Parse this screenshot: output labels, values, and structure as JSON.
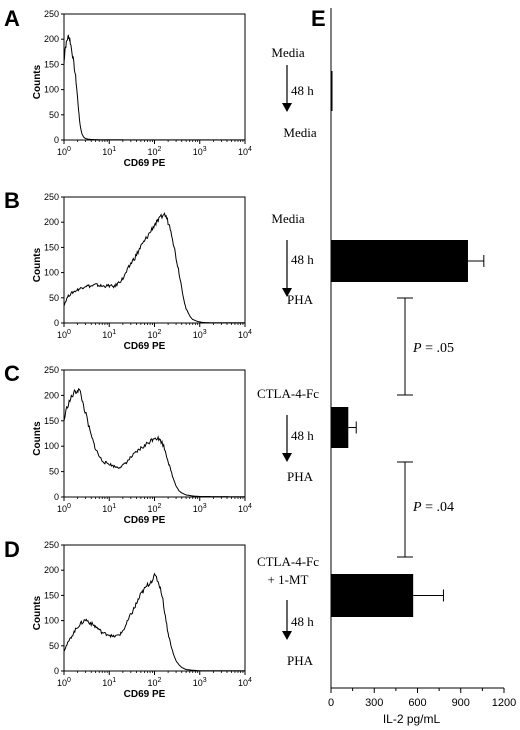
{
  "panels": [
    {
      "letter": "A",
      "xlabel": "CD69 PE",
      "ylabel": "Counts",
      "y_ticks": [
        "0",
        "50",
        "100",
        "150",
        "200",
        "250"
      ],
      "x_ticks": [
        "10",
        "10",
        "10",
        "10",
        "10"
      ],
      "x_tick_exps": [
        "0",
        "1",
        "2",
        "3",
        "4"
      ],
      "ylim": [
        0,
        250
      ],
      "curve": [
        [
          1.0,
          150
        ],
        [
          1.02,
          165
        ],
        [
          1.05,
          180
        ],
        [
          1.1,
          188
        ],
        [
          1.15,
          196
        ],
        [
          1.2,
          202
        ],
        [
          1.25,
          206
        ],
        [
          1.3,
          204
        ],
        [
          1.35,
          198
        ],
        [
          1.42,
          188
        ],
        [
          1.5,
          175
        ],
        [
          1.6,
          160
        ],
        [
          1.7,
          142
        ],
        [
          1.8,
          125
        ],
        [
          1.9,
          105
        ],
        [
          2.0,
          82
        ],
        [
          2.1,
          60
        ],
        [
          2.2,
          40
        ],
        [
          2.35,
          22
        ],
        [
          2.5,
          12
        ],
        [
          2.7,
          6
        ],
        [
          3.0,
          3
        ],
        [
          3.5,
          1.5
        ],
        [
          4.0,
          1
        ],
        [
          5,
          0.8
        ],
        [
          7,
          0.5
        ],
        [
          10,
          0.4
        ],
        [
          20,
          0.3
        ],
        [
          50,
          0.2
        ],
        [
          100,
          0.2
        ],
        [
          1000,
          0.1
        ],
        [
          10000,
          0.1
        ]
      ]
    },
    {
      "letter": "B",
      "xlabel": "CD69 PE",
      "ylabel": "Counts",
      "y_ticks": [
        "0",
        "50",
        "100",
        "150",
        "200",
        "250"
      ],
      "x_ticks": [
        "10",
        "10",
        "10",
        "10",
        "10"
      ],
      "x_tick_exps": [
        "0",
        "1",
        "2",
        "3",
        "4"
      ],
      "ylim": [
        0,
        250
      ],
      "curve": [
        [
          1.0,
          35
        ],
        [
          1.2,
          52
        ],
        [
          1.5,
          60
        ],
        [
          2,
          66
        ],
        [
          2.5,
          70
        ],
        [
          3,
          74
        ],
        [
          4,
          73
        ],
        [
          5,
          76
        ],
        [
          7,
          73
        ],
        [
          10,
          74
        ],
        [
          13,
          72
        ],
        [
          16,
          80
        ],
        [
          20,
          88
        ],
        [
          25,
          104
        ],
        [
          30,
          118
        ],
        [
          40,
          135
        ],
        [
          50,
          152
        ],
        [
          60,
          162
        ],
        [
          70,
          172
        ],
        [
          80,
          180
        ],
        [
          90,
          188
        ],
        [
          100,
          195
        ],
        [
          120,
          202
        ],
        [
          140,
          210
        ],
        [
          160,
          216
        ],
        [
          180,
          212
        ],
        [
          200,
          200
        ],
        [
          230,
          186
        ],
        [
          260,
          160
        ],
        [
          300,
          130
        ],
        [
          350,
          100
        ],
        [
          400,
          70
        ],
        [
          450,
          45
        ],
        [
          500,
          28
        ],
        [
          600,
          14
        ],
        [
          700,
          7
        ],
        [
          900,
          3
        ],
        [
          1200,
          1
        ],
        [
          2000,
          0.5
        ],
        [
          10000,
          0.3
        ]
      ]
    },
    {
      "letter": "C",
      "xlabel": "CD69 PE",
      "ylabel": "Counts",
      "y_ticks": [
        "0",
        "50",
        "100",
        "150",
        "200",
        "250"
      ],
      "x_ticks": [
        "10",
        "10",
        "10",
        "10",
        "10"
      ],
      "x_tick_exps": [
        "0",
        "1",
        "2",
        "3",
        "4"
      ],
      "ylim": [
        0,
        250
      ],
      "curve": [
        [
          1.0,
          150
        ],
        [
          1.1,
          168
        ],
        [
          1.2,
          180
        ],
        [
          1.35,
          190
        ],
        [
          1.5,
          198
        ],
        [
          1.7,
          206
        ],
        [
          1.9,
          208
        ],
        [
          2.1,
          212
        ],
        [
          2.3,
          205
        ],
        [
          2.5,
          192
        ],
        [
          2.8,
          175
        ],
        [
          3.2,
          155
        ],
        [
          3.6,
          135
        ],
        [
          4,
          120
        ],
        [
          5,
          95
        ],
        [
          6,
          80
        ],
        [
          7,
          72
        ],
        [
          8,
          68
        ],
        [
          10,
          65
        ],
        [
          13,
          60
        ],
        [
          16,
          58
        ],
        [
          20,
          62
        ],
        [
          25,
          70
        ],
        [
          30,
          78
        ],
        [
          40,
          88
        ],
        [
          50,
          96
        ],
        [
          60,
          100
        ],
        [
          70,
          106
        ],
        [
          80,
          110
        ],
        [
          90,
          114
        ],
        [
          100,
          118
        ],
        [
          120,
          115
        ],
        [
          140,
          110
        ],
        [
          160,
          100
        ],
        [
          180,
          86
        ],
        [
          200,
          70
        ],
        [
          230,
          52
        ],
        [
          260,
          36
        ],
        [
          300,
          22
        ],
        [
          350,
          12
        ],
        [
          400,
          8
        ],
        [
          500,
          4
        ],
        [
          700,
          2
        ],
        [
          1000,
          1
        ],
        [
          10000,
          0.5
        ]
      ]
    },
    {
      "letter": "D",
      "xlabel": "CD69 PE",
      "ylabel": "Counts",
      "y_ticks": [
        "0",
        "50",
        "100",
        "150",
        "200",
        "250"
      ],
      "x_ticks": [
        "10",
        "10",
        "10",
        "10",
        "10"
      ],
      "x_tick_exps": [
        "0",
        "1",
        "2",
        "3",
        "4"
      ],
      "ylim": [
        0,
        250
      ],
      "curve": [
        [
          1.0,
          40
        ],
        [
          1.2,
          55
        ],
        [
          1.5,
          70
        ],
        [
          1.8,
          82
        ],
        [
          2.1,
          90
        ],
        [
          2.5,
          96
        ],
        [
          3,
          102
        ],
        [
          3.5,
          98
        ],
        [
          4,
          94
        ],
        [
          5,
          88
        ],
        [
          6,
          82
        ],
        [
          7,
          76
        ],
        [
          8,
          74
        ],
        [
          10,
          72
        ],
        [
          12,
          68
        ],
        [
          15,
          70
        ],
        [
          18,
          74
        ],
        [
          22,
          86
        ],
        [
          26,
          100
        ],
        [
          30,
          112
        ],
        [
          36,
          125
        ],
        [
          42,
          138
        ],
        [
          50,
          152
        ],
        [
          60,
          162
        ],
        [
          70,
          170
        ],
        [
          80,
          176
        ],
        [
          90,
          182
        ],
        [
          100,
          188
        ],
        [
          110,
          185
        ],
        [
          120,
          178
        ],
        [
          140,
          160
        ],
        [
          160,
          130
        ],
        [
          180,
          100
        ],
        [
          200,
          75
        ],
        [
          230,
          52
        ],
        [
          260,
          34
        ],
        [
          300,
          20
        ],
        [
          350,
          12
        ],
        [
          400,
          7
        ],
        [
          500,
          3
        ],
        [
          700,
          1.5
        ],
        [
          1000,
          0.5
        ],
        [
          10000,
          0.3
        ]
      ]
    }
  ],
  "panel_e": {
    "letter": "E",
    "conditions": [
      {
        "top_lines": [
          "Media"
        ],
        "duration": "48 h",
        "bottom": "Media"
      },
      {
        "top_lines": [
          "Media"
        ],
        "duration": "48 h",
        "bottom": "PHA"
      },
      {
        "top_lines": [
          "CTLA-4-Fc"
        ],
        "duration": "48 h",
        "bottom": "PHA"
      },
      {
        "top_lines": [
          "CTLA-4-Fc",
          "+ 1-MT"
        ],
        "duration": "48 h",
        "bottom": "PHA"
      }
    ],
    "comparisons": [
      {
        "p_italic": "P",
        "p_rest": " = .05"
      },
      {
        "p_italic": "P",
        "p_rest": " = .04"
      }
    ]
  },
  "chart_data": {
    "type": "bar",
    "orientation": "horizontal",
    "categories": [
      "Media / 48 h / Media",
      "Media / 48 h / PHA",
      "CTLA-4-Fc / 48 h / PHA",
      "CTLA-4-Fc + 1-MT / 48 h / PHA"
    ],
    "values": [
      5,
      950,
      120,
      570
    ],
    "errors": [
      0,
      110,
      55,
      210
    ],
    "xlabel": "IL-2 pg/mL",
    "xlim": [
      0,
      1200
    ],
    "x_ticks": [
      "0",
      "300",
      "600",
      "900",
      "1200"
    ],
    "x_tick_values": [
      0,
      300,
      600,
      900,
      1200
    ]
  }
}
